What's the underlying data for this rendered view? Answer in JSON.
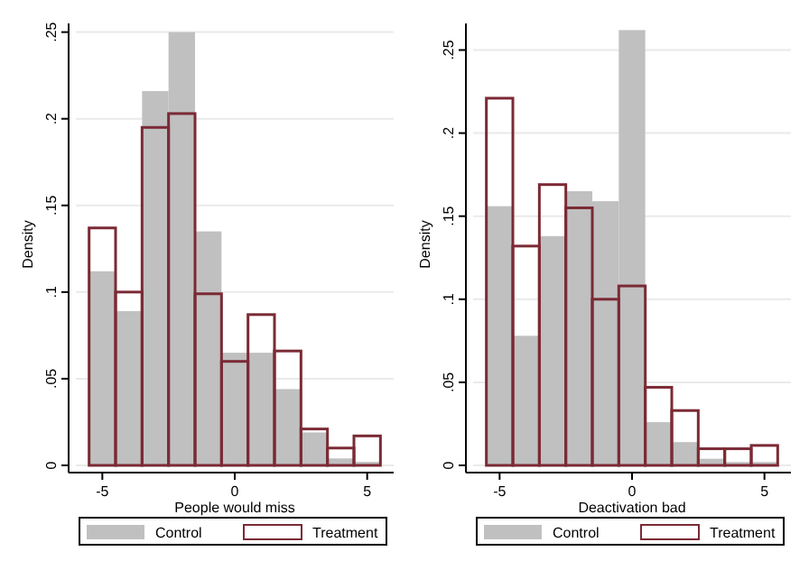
{
  "chart_data": [
    {
      "type": "histogram",
      "xlabel": "People would miss",
      "ylabel": "Density",
      "bins": [
        -5.5,
        -4.5,
        -3.5,
        -2.5,
        -1.5,
        -0.5,
        0.5,
        1.5,
        2.5,
        3.5,
        4.5,
        5.5
      ],
      "xlim": [
        -6,
        6
      ],
      "xticks": [
        -5,
        0,
        5
      ],
      "ylim": [
        0,
        0.255
      ],
      "yticks": [
        0,
        {
          "value": 0.05,
          "label": ".05"
        },
        {
          "value": 0.1,
          "label": ".1"
        },
        {
          "value": 0.15,
          "label": ".15"
        },
        {
          "value": 0.2,
          "label": ".2"
        },
        {
          "value": 0.25,
          "label": ".25"
        }
      ],
      "grid": "y",
      "legend": "bottom",
      "series": [
        {
          "name": "Control",
          "color": "#c0c0c0",
          "values": [
            0.112,
            0.089,
            0.216,
            0.25,
            0.135,
            0.065,
            0.065,
            0.044,
            0.019,
            0.004,
            0.002
          ]
        },
        {
          "name": "Treatment",
          "color": "#7b2a35",
          "values": [
            0.137,
            0.1,
            0.195,
            0.203,
            0.099,
            0.06,
            0.087,
            0.066,
            0.021,
            0.01,
            0.017
          ]
        }
      ]
    },
    {
      "type": "histogram",
      "xlabel": "Deactivation bad",
      "ylabel": "Density",
      "bins": [
        -5.5,
        -4.5,
        -3.5,
        -2.5,
        -1.5,
        -0.5,
        0.5,
        1.5,
        2.5,
        3.5,
        4.5,
        5.5
      ],
      "xlim": [
        -6,
        6
      ],
      "xticks": [
        -5,
        0,
        5
      ],
      "ylim": [
        0,
        0.266
      ],
      "yticks": [
        0,
        {
          "value": 0.05,
          "label": ".05"
        },
        {
          "value": 0.1,
          "label": ".1"
        },
        {
          "value": 0.15,
          "label": ".15"
        },
        {
          "value": 0.2,
          "label": ".2"
        },
        {
          "value": 0.25,
          "label": ".25"
        }
      ],
      "grid": "y",
      "legend": "bottom",
      "series": [
        {
          "name": "Control",
          "color": "#c0c0c0",
          "values": [
            0.156,
            0.078,
            0.138,
            0.165,
            0.159,
            0.262,
            0.026,
            0.014,
            0.004,
            0.002,
            0.002
          ]
        },
        {
          "name": "Treatment",
          "color": "#7b2a35",
          "values": [
            0.221,
            0.132,
            0.169,
            0.155,
            0.1,
            0.108,
            0.047,
            0.033,
            0.01,
            0.01,
            0.012
          ]
        }
      ]
    }
  ]
}
